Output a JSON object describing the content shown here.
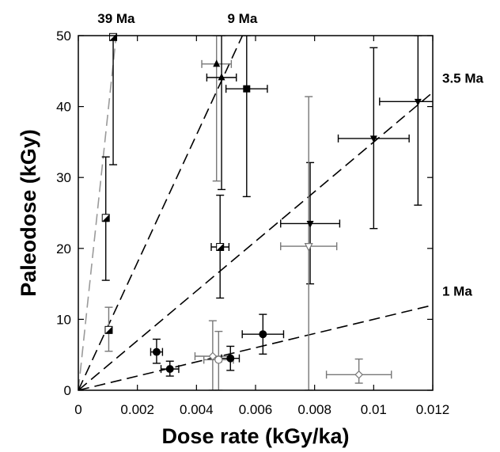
{
  "chart_data": {
    "type": "scatter",
    "title": "",
    "xlabel": "Dose rate (kGy/ka)",
    "ylabel": "Paleodose (kGy)",
    "xlim": [
      0,
      0.012
    ],
    "ylim": [
      0,
      50
    ],
    "x_ticks": [
      "0",
      "0.002",
      "0.004",
      "0.006",
      "0.008",
      "0.01",
      "0.012"
    ],
    "x_tick_values": [
      0,
      0.002,
      0.004,
      0.006,
      0.008,
      0.01,
      0.012
    ],
    "y_ticks": [
      "0",
      "10",
      "20",
      "30",
      "40",
      "50"
    ],
    "y_tick_values": [
      0,
      10,
      20,
      30,
      40,
      50
    ],
    "grid": false,
    "isochrons": [
      {
        "label": "39 Ma",
        "slope_kGy_per_kGyka": 39000,
        "color": "#9a9a9a"
      },
      {
        "label": "9 Ma",
        "slope_kGy_per_kGyka": 9000,
        "color": "#000000"
      },
      {
        "label": "3.5 Ma",
        "slope_kGy_per_kGyka": 3500,
        "color": "#000000"
      },
      {
        "label": "1 Ma",
        "slope_kGy_per_kGyka": 1000,
        "color": "#000000"
      }
    ],
    "points": [
      {
        "x": 0.00093,
        "y": 24.3,
        "xerr": 5e-05,
        "yerr_low": 8.8,
        "yerr_high": 8.6,
        "marker": "half-triangle",
        "color": "#000000"
      },
      {
        "x": 0.00103,
        "y": 8.5,
        "xerr": 5e-05,
        "yerr_low": 3.0,
        "yerr_high": 3.2,
        "marker": "half-triangle",
        "color": "#777777"
      },
      {
        "x": 0.00118,
        "y": 49.8,
        "xerr": 0.0001,
        "yerr_low": 18.0,
        "yerr_high": 0.2,
        "marker": "half-triangle",
        "color": "#000000"
      },
      {
        "x": 0.00265,
        "y": 5.4,
        "xerr": 0.0002,
        "yerr_low": 1.6,
        "yerr_high": 1.8,
        "marker": "circle",
        "color": "#000000"
      },
      {
        "x": 0.0031,
        "y": 3.0,
        "xerr": 0.0003,
        "yerr_low": 1.0,
        "yerr_high": 1.1,
        "marker": "circle",
        "color": "#000000"
      },
      {
        "x": 0.00455,
        "y": 4.8,
        "xerr": 0.0006,
        "yerr_low": 4.8,
        "yerr_high": 5.0,
        "marker": "diamond-open",
        "color": "#777777"
      },
      {
        "x": 0.00475,
        "y": 4.3,
        "xerr": 0.0005,
        "yerr_low": 4.3,
        "yerr_high": 4.0,
        "marker": "circle-open",
        "color": "#777777"
      },
      {
        "x": 0.00515,
        "y": 4.5,
        "xerr": 0.0003,
        "yerr_low": 1.7,
        "yerr_high": 1.7,
        "marker": "circle",
        "color": "#000000"
      },
      {
        "x": 0.00468,
        "y": 46.0,
        "xerr": 0.0005,
        "yerr_low": 16.5,
        "yerr_high": 4.0,
        "marker": "triangle-up",
        "color": "#777777"
      },
      {
        "x": 0.00485,
        "y": 44.1,
        "xerr": 0.0005,
        "yerr_low": 15.8,
        "yerr_high": 5.9,
        "marker": "triangle-up",
        "color": "#000000"
      },
      {
        "x": 0.0048,
        "y": 20.2,
        "xerr": 0.0003,
        "yerr_low": 7.2,
        "yerr_high": 7.3,
        "marker": "half-triangle",
        "color": "#000000"
      },
      {
        "x": 0.0057,
        "y": 42.5,
        "xerr": 0.0007,
        "yerr_low": 15.2,
        "yerr_high": 7.5,
        "marker": "square",
        "color": "#000000"
      },
      {
        "x": 0.00625,
        "y": 7.9,
        "xerr": 0.0007,
        "yerr_low": 2.8,
        "yerr_high": 2.8,
        "marker": "circle",
        "color": "#000000"
      },
      {
        "x": 0.00785,
        "y": 23.5,
        "xerr": 0.001,
        "yerr_low": 8.5,
        "yerr_high": 8.6,
        "marker": "triangle-down",
        "color": "#000000"
      },
      {
        "x": 0.0078,
        "y": 20.3,
        "xerr": 0.00095,
        "yerr_low": 20.3,
        "yerr_high": 21.1,
        "marker": "triangle-down-open",
        "color": "#777777"
      },
      {
        "x": 0.0095,
        "y": 2.2,
        "xerr": 0.0011,
        "yerr_low": 1.2,
        "yerr_high": 2.2,
        "marker": "diamond-open",
        "color": "#777777"
      },
      {
        "x": 0.01,
        "y": 35.5,
        "xerr": 0.0012,
        "yerr_low": 12.7,
        "yerr_high": 12.8,
        "marker": "triangle-down",
        "color": "#000000"
      },
      {
        "x": 0.0115,
        "y": 40.7,
        "xerr": 0.0013,
        "yerr_low": 14.6,
        "yerr_high": 9.3,
        "marker": "triangle-down",
        "color": "#000000"
      }
    ]
  }
}
